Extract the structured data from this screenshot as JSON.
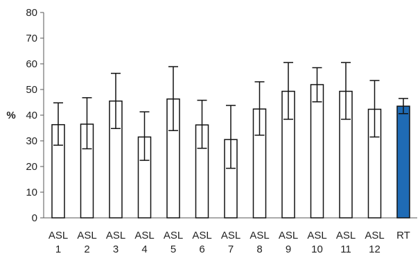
{
  "chart_data": {
    "type": "bar",
    "title": "",
    "xlabel": "",
    "ylabel": "%",
    "ylim": [
      0,
      80
    ],
    "yticks": [
      0,
      10,
      20,
      30,
      40,
      50,
      60,
      70,
      80
    ],
    "grid": false,
    "categories": [
      {
        "line1": "ASL",
        "line2": "1"
      },
      {
        "line1": "ASL",
        "line2": "2"
      },
      {
        "line1": "ASL",
        "line2": "3"
      },
      {
        "line1": "ASL",
        "line2": "4"
      },
      {
        "line1": "ASL",
        "line2": "5"
      },
      {
        "line1": "ASL",
        "line2": "6"
      },
      {
        "line1": "ASL",
        "line2": "7"
      },
      {
        "line1": "ASL",
        "line2": "8"
      },
      {
        "line1": "ASL",
        "line2": "9"
      },
      {
        "line1": "ASL",
        "line2": "10"
      },
      {
        "line1": "ASL",
        "line2": "11"
      },
      {
        "line1": "ASL",
        "line2": "12"
      },
      {
        "line1": "RT",
        "line2": ""
      }
    ],
    "values": [
      36.3,
      36.5,
      45.5,
      31.5,
      46.3,
      36.2,
      30.5,
      42.4,
      49.3,
      51.9,
      49.3,
      42.3,
      43.5
    ],
    "error_upper": [
      44.8,
      46.8,
      56.3,
      41.3,
      58.9,
      45.8,
      43.8,
      53.0,
      60.5,
      58.5,
      60.5,
      53.5,
      46.5
    ],
    "error_lower": [
      28.3,
      26.9,
      34.8,
      22.4,
      34.0,
      27.1,
      19.3,
      32.2,
      38.4,
      45.2,
      38.4,
      31.5,
      40.6
    ],
    "colors": {
      "default_fill": "#ffffff",
      "highlight_fill": "#1f6bb5",
      "highlight_index": 12,
      "stroke": "#111111",
      "axis": "#555555"
    }
  }
}
